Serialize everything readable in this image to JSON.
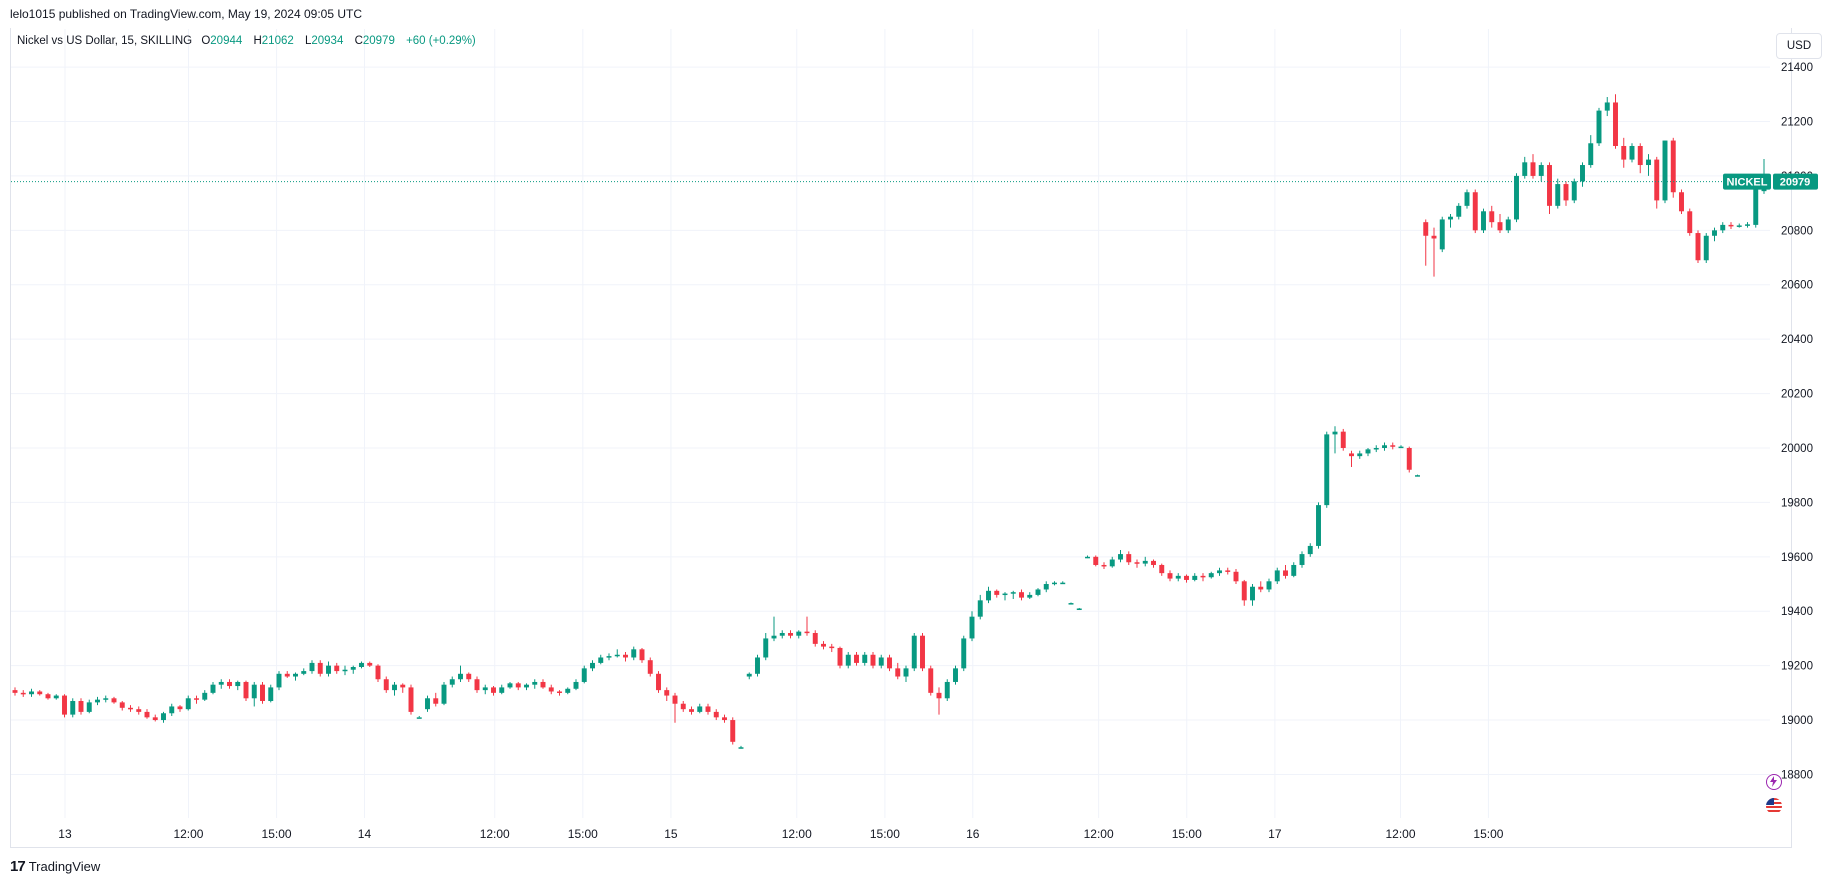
{
  "header": {
    "published": "lelo1015 published on TradingView.com, May 19, 2024 09:05 UTC"
  },
  "legend": {
    "symbol": "Nickel vs US Dollar, 15, SKILLING",
    "open_key": "O",
    "open": "20944",
    "high_key": "H",
    "high": "21062",
    "low_key": "L",
    "low": "20934",
    "close_key": "C",
    "close": "20979",
    "change": "+60 (+0.29%)"
  },
  "currency_button": "USD",
  "footer": {
    "logo": "TradingView"
  },
  "colors": {
    "up": "#089981",
    "down": "#f23645",
    "grid": "#f0f3fa",
    "price_line": "#089981"
  },
  "icons": [
    "tradingview-logo-icon",
    "lightning-icon",
    "us-flag-icon"
  ],
  "chart_data": {
    "type": "candlestick",
    "title": "Nickel vs US Dollar, 15, SKILLING",
    "interval": "15",
    "currency": "USD",
    "ylim": [
      18640,
      21540
    ],
    "y_ticks": [
      18800,
      19000,
      19200,
      19400,
      19600,
      19800,
      20000,
      20200,
      20400,
      20600,
      20800,
      21000,
      21200,
      21400
    ],
    "x_ticks": [
      "13",
      "12:00",
      "15:00",
      "14",
      "12:00",
      "15:00",
      "15",
      "12:00",
      "15:00",
      "16",
      "12:00",
      "15:00",
      "17",
      "12:00",
      "15:00"
    ],
    "grid": true,
    "last_price_label": {
      "name": "NICKEL",
      "value": "20979"
    },
    "candles_approx": [
      [
        19110,
        19120,
        19090,
        19100
      ],
      [
        19100,
        19110,
        19085,
        19095
      ],
      [
        19095,
        19115,
        19085,
        19105
      ],
      [
        19105,
        19110,
        19090,
        19095
      ],
      [
        19095,
        19100,
        19075,
        19080
      ],
      [
        19080,
        19095,
        19075,
        19090
      ],
      [
        19090,
        19095,
        19010,
        19020
      ],
      [
        19020,
        19080,
        19010,
        19070
      ],
      [
        19070,
        19080,
        19020,
        19030
      ],
      [
        19030,
        19075,
        19025,
        19065
      ],
      [
        19065,
        19085,
        19055,
        19075
      ],
      [
        19075,
        19090,
        19065,
        19080
      ],
      [
        19080,
        19085,
        19060,
        19065
      ],
      [
        19065,
        19070,
        19035,
        19045
      ],
      [
        19045,
        19055,
        19030,
        19040
      ],
      [
        19040,
        19050,
        19020,
        19030
      ],
      [
        19030,
        19040,
        19005,
        19010
      ],
      [
        19010,
        19020,
        18995,
        19000
      ],
      [
        19000,
        19030,
        18990,
        19025
      ],
      [
        19025,
        19060,
        19015,
        19050
      ],
      [
        19050,
        19055,
        19030,
        19040
      ],
      [
        19040,
        19090,
        19035,
        19080
      ],
      [
        19080,
        19090,
        19060,
        19075
      ],
      [
        19075,
        19110,
        19070,
        19100
      ],
      [
        19100,
        19140,
        19095,
        19130
      ],
      [
        19130,
        19150,
        19115,
        19140
      ],
      [
        19140,
        19150,
        19115,
        19125
      ],
      [
        19125,
        19145,
        19110,
        19140
      ],
      [
        19140,
        19145,
        19070,
        19080
      ],
      [
        19080,
        19140,
        19050,
        19130
      ],
      [
        19130,
        19140,
        19060,
        19070
      ],
      [
        19070,
        19130,
        19065,
        19120
      ],
      [
        19120,
        19180,
        19110,
        19170
      ],
      [
        19170,
        19180,
        19155,
        19160
      ],
      [
        19160,
        19175,
        19145,
        19170
      ],
      [
        19170,
        19190,
        19165,
        19180
      ],
      [
        19180,
        19220,
        19170,
        19210
      ],
      [
        19210,
        19220,
        19160,
        19170
      ],
      [
        19170,
        19215,
        19160,
        19200
      ],
      [
        19200,
        19210,
        19170,
        19180
      ],
      [
        19180,
        19200,
        19165,
        19185
      ],
      [
        19185,
        19200,
        19170,
        19195
      ],
      [
        19195,
        19215,
        19190,
        19210
      ],
      [
        19210,
        19215,
        19195,
        19200
      ],
      [
        19200,
        19205,
        19140,
        19150
      ],
      [
        19150,
        19160,
        19100,
        19110
      ],
      [
        19110,
        19140,
        19090,
        19130
      ],
      [
        19130,
        19135,
        19100,
        19120
      ],
      [
        19120,
        19130,
        19020,
        19030
      ],
      [
        19010,
        19015,
        19010,
        19010
      ],
      [
        19040,
        19090,
        19030,
        19080
      ],
      [
        19080,
        19100,
        19050,
        19060
      ],
      [
        19060,
        19140,
        19055,
        19130
      ],
      [
        19130,
        19160,
        19120,
        19150
      ],
      [
        19150,
        19200,
        19140,
        19170
      ],
      [
        19170,
        19175,
        19140,
        19150
      ],
      [
        19150,
        19160,
        19100,
        19110
      ],
      [
        19110,
        19130,
        19095,
        19120
      ],
      [
        19120,
        19125,
        19090,
        19100
      ],
      [
        19100,
        19130,
        19095,
        19120
      ],
      [
        19120,
        19140,
        19115,
        19135
      ],
      [
        19135,
        19140,
        19110,
        19120
      ],
      [
        19120,
        19135,
        19110,
        19130
      ],
      [
        19130,
        19150,
        19115,
        19140
      ],
      [
        19140,
        19150,
        19115,
        19120
      ],
      [
        19120,
        19130,
        19095,
        19105
      ],
      [
        19105,
        19110,
        19090,
        19100
      ],
      [
        19100,
        19120,
        19095,
        19115
      ],
      [
        19115,
        19150,
        19110,
        19140
      ],
      [
        19140,
        19200,
        19135,
        19190
      ],
      [
        19190,
        19220,
        19180,
        19210
      ],
      [
        19210,
        19240,
        19205,
        19230
      ],
      [
        19230,
        19245,
        19220,
        19235
      ],
      [
        19235,
        19260,
        19230,
        19240
      ],
      [
        19240,
        19250,
        19215,
        19230
      ],
      [
        19230,
        19270,
        19220,
        19260
      ],
      [
        19260,
        19265,
        19210,
        19220
      ],
      [
        19220,
        19230,
        19160,
        19170
      ],
      [
        19170,
        19180,
        19100,
        19110
      ],
      [
        19110,
        19120,
        19070,
        19090
      ],
      [
        19090,
        19100,
        18990,
        19060
      ],
      [
        19060,
        19070,
        19030,
        19040
      ],
      [
        19040,
        19050,
        19020,
        19030
      ],
      [
        19030,
        19060,
        19025,
        19050
      ],
      [
        19050,
        19060,
        19020,
        19030
      ],
      [
        19030,
        19040,
        19000,
        19010
      ],
      [
        19010,
        19020,
        18990,
        19000
      ],
      [
        19000,
        19010,
        18910,
        18920
      ],
      [
        18900,
        18905,
        18895,
        18900
      ],
      [
        19160,
        19175,
        19150,
        19170
      ],
      [
        19170,
        19240,
        19160,
        19230
      ],
      [
        19230,
        19320,
        19220,
        19300
      ],
      [
        19300,
        19380,
        19290,
        19310
      ],
      [
        19310,
        19330,
        19300,
        19320
      ],
      [
        19320,
        19330,
        19300,
        19310
      ],
      [
        19310,
        19330,
        19300,
        19325
      ],
      [
        19325,
        19380,
        19310,
        19320
      ],
      [
        19320,
        19330,
        19270,
        19280
      ],
      [
        19280,
        19290,
        19260,
        19270
      ],
      [
        19270,
        19280,
        19250,
        19265
      ],
      [
        19265,
        19270,
        19190,
        19200
      ],
      [
        19200,
        19250,
        19190,
        19240
      ],
      [
        19240,
        19250,
        19200,
        19210
      ],
      [
        19210,
        19250,
        19200,
        19240
      ],
      [
        19240,
        19250,
        19190,
        19200
      ],
      [
        19200,
        19240,
        19190,
        19230
      ],
      [
        19230,
        19240,
        19180,
        19190
      ],
      [
        19190,
        19210,
        19150,
        19160
      ],
      [
        19160,
        19200,
        19140,
        19190
      ],
      [
        19190,
        19320,
        19180,
        19310
      ],
      [
        19310,
        19320,
        19180,
        19190
      ],
      [
        19190,
        19200,
        19090,
        19100
      ],
      [
        19100,
        19120,
        19020,
        19080
      ],
      [
        19080,
        19150,
        19070,
        19140
      ],
      [
        19140,
        19200,
        19130,
        19190
      ],
      [
        19190,
        19310,
        19180,
        19300
      ],
      [
        19300,
        19400,
        19290,
        19380
      ],
      [
        19380,
        19460,
        19370,
        19440
      ],
      [
        19440,
        19490,
        19430,
        19475
      ],
      [
        19475,
        19480,
        19450,
        19460
      ],
      [
        19460,
        19470,
        19440,
        19465
      ],
      [
        19465,
        19475,
        19445,
        19470
      ],
      [
        19470,
        19480,
        19440,
        19450
      ],
      [
        19450,
        19470,
        19445,
        19460
      ],
      [
        19460,
        19485,
        19455,
        19480
      ],
      [
        19480,
        19510,
        19470,
        19500
      ],
      [
        19500,
        19510,
        19495,
        19505
      ],
      [
        19505,
        19510,
        19500,
        19505
      ],
      [
        19430,
        19432,
        19428,
        19430
      ],
      [
        19410,
        19412,
        19408,
        19410
      ],
      [
        19600,
        19605,
        19595,
        19600
      ],
      [
        19600,
        19605,
        19565,
        19570
      ],
      [
        19570,
        19580,
        19555,
        19565
      ],
      [
        19565,
        19600,
        19560,
        19590
      ],
      [
        19590,
        19625,
        19580,
        19610
      ],
      [
        19610,
        19620,
        19570,
        19580
      ],
      [
        19580,
        19590,
        19560,
        19575
      ],
      [
        19575,
        19600,
        19565,
        19585
      ],
      [
        19585,
        19590,
        19560,
        19570
      ],
      [
        19570,
        19575,
        19530,
        19540
      ],
      [
        19540,
        19550,
        19510,
        19520
      ],
      [
        19520,
        19540,
        19510,
        19530
      ],
      [
        19530,
        19535,
        19505,
        19515
      ],
      [
        19515,
        19540,
        19510,
        19530
      ],
      [
        19530,
        19540,
        19510,
        19525
      ],
      [
        19525,
        19545,
        19520,
        19540
      ],
      [
        19540,
        19560,
        19530,
        19550
      ],
      [
        19550,
        19560,
        19535,
        19545
      ],
      [
        19545,
        19555,
        19500,
        19510
      ],
      [
        19510,
        19515,
        19420,
        19440
      ],
      [
        19440,
        19500,
        19420,
        19490
      ],
      [
        19490,
        19510,
        19470,
        19480
      ],
      [
        19480,
        19520,
        19470,
        19510
      ],
      [
        19510,
        19560,
        19500,
        19550
      ],
      [
        19550,
        19570,
        19520,
        19530
      ],
      [
        19530,
        19580,
        19525,
        19570
      ],
      [
        19570,
        19620,
        19560,
        19610
      ],
      [
        19610,
        19650,
        19600,
        19640
      ],
      [
        19640,
        19800,
        19630,
        19790
      ],
      [
        19790,
        20060,
        19780,
        20050
      ],
      [
        20050,
        20080,
        19980,
        20060
      ],
      [
        20060,
        20070,
        19990,
        20000
      ],
      [
        19980,
        19990,
        19930,
        19970
      ],
      [
        19970,
        19990,
        19960,
        19980
      ],
      [
        19980,
        20000,
        19970,
        19995
      ],
      [
        19995,
        20010,
        19985,
        20000
      ],
      [
        20000,
        20020,
        19990,
        20010
      ],
      [
        20010,
        20020,
        19995,
        20005
      ],
      [
        20005,
        20010,
        20000,
        20005
      ],
      [
        20000,
        20005,
        19910,
        19920
      ],
      [
        19900,
        19902,
        19898,
        19900
      ],
      [
        20830,
        20840,
        20670,
        20780
      ],
      [
        20780,
        20810,
        20630,
        20770
      ],
      [
        20730,
        20850,
        20720,
        20840
      ],
      [
        20840,
        20860,
        20810,
        20850
      ],
      [
        20850,
        20900,
        20840,
        20890
      ],
      [
        20890,
        20950,
        20880,
        20940
      ],
      [
        20940,
        20950,
        20790,
        20800
      ],
      [
        20800,
        20880,
        20790,
        20870
      ],
      [
        20870,
        20890,
        20810,
        20830
      ],
      [
        20830,
        20860,
        20790,
        20800
      ],
      [
        20800,
        20850,
        20790,
        20840
      ],
      [
        20840,
        21010,
        20830,
        21000
      ],
      [
        21000,
        21070,
        20990,
        21050
      ],
      [
        21050,
        21080,
        20990,
        21000
      ],
      [
        21000,
        21050,
        20980,
        21040
      ],
      [
        21040,
        21050,
        20860,
        20890
      ],
      [
        20890,
        20990,
        20880,
        20970
      ],
      [
        20970,
        20980,
        20890,
        20910
      ],
      [
        20910,
        20990,
        20900,
        20980
      ],
      [
        20980,
        21050,
        20960,
        21040
      ],
      [
        21040,
        21150,
        21030,
        21120
      ],
      [
        21120,
        21250,
        21110,
        21240
      ],
      [
        21240,
        21290,
        21220,
        21270
      ],
      [
        21270,
        21300,
        21100,
        21110
      ],
      [
        21110,
        21140,
        21030,
        21060
      ],
      [
        21060,
        21120,
        21050,
        21110
      ],
      [
        21110,
        21120,
        21010,
        21040
      ],
      [
        21040,
        21080,
        21000,
        21060
      ],
      [
        21060,
        21070,
        20880,
        20910
      ],
      [
        20910,
        21130,
        20900,
        21130
      ],
      [
        21130,
        21140,
        20920,
        20940
      ],
      [
        20940,
        20950,
        20860,
        20870
      ],
      [
        20870,
        20880,
        20780,
        20790
      ],
      [
        20790,
        20800,
        20680,
        20690
      ],
      [
        20690,
        20790,
        20680,
        20780
      ],
      [
        20780,
        20810,
        20760,
        20800
      ],
      [
        20800,
        20830,
        20790,
        20820
      ],
      [
        20820,
        20830,
        20805,
        20815
      ],
      [
        20815,
        20825,
        20810,
        20818
      ],
      [
        20818,
        20830,
        20810,
        20822
      ],
      [
        20820,
        20960,
        20810,
        20950
      ],
      [
        20944,
        21062,
        20934,
        20979
      ]
    ]
  }
}
